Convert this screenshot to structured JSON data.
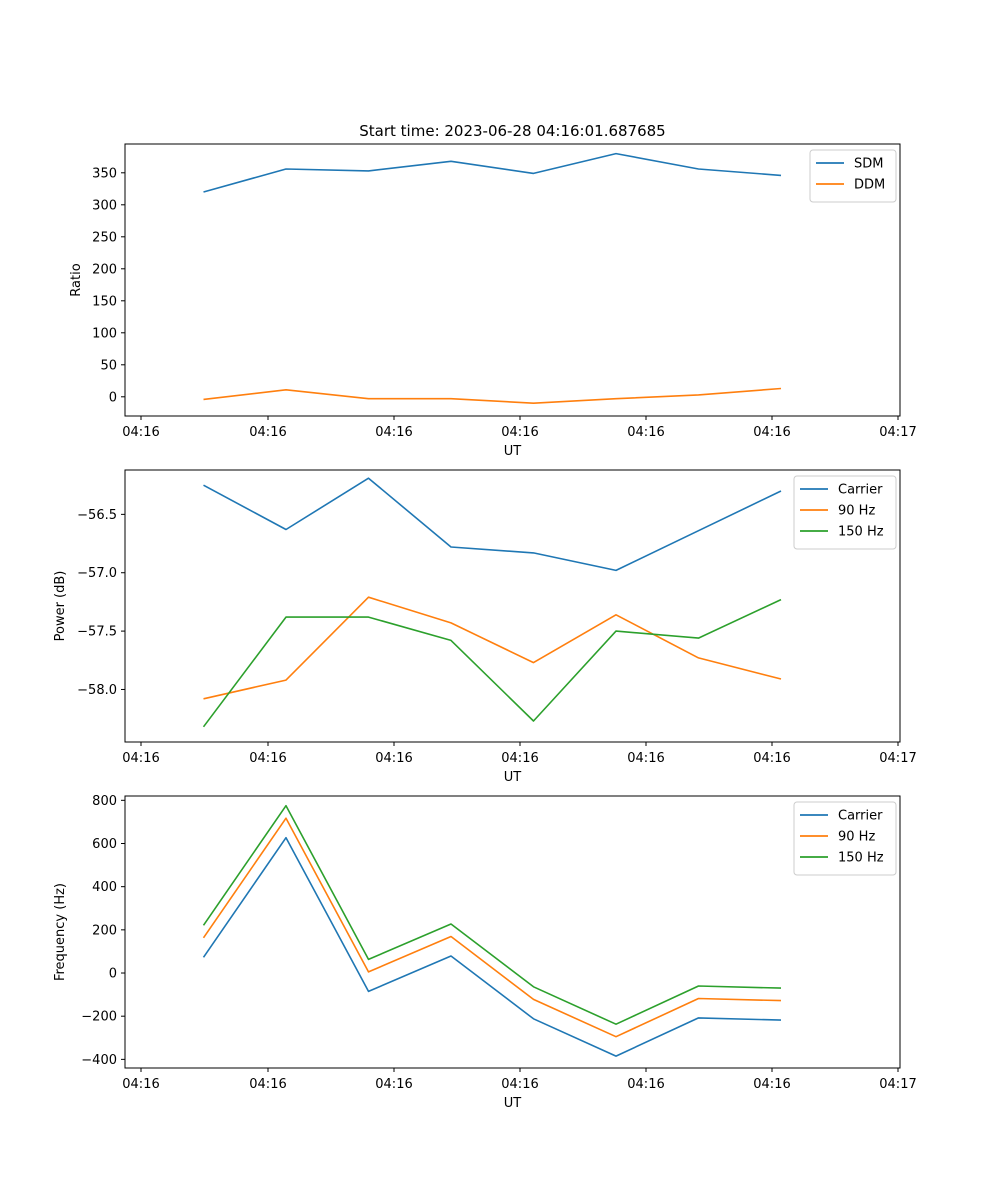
{
  "title": "Start time: 2023-06-28 04:16:01.687685",
  "chart_data": [
    {
      "type": "line",
      "title": "Start time: 2023-06-28 04:16:01.687685",
      "xlabel": "UT",
      "ylabel": "Ratio",
      "x_ticklabels": [
        "04:16",
        "04:16",
        "04:16",
        "04:16",
        "04:16",
        "04:16",
        "04:17"
      ],
      "yticks": [
        0,
        50,
        100,
        150,
        200,
        250,
        300,
        350
      ],
      "ytick_labels": [
        "0",
        "50",
        "100",
        "150",
        "200",
        "250",
        "300",
        "350"
      ],
      "ylim": [
        -30,
        395
      ],
      "legend": "upper right",
      "grid": false,
      "series": [
        {
          "name": "SDM",
          "color": "#1f77b4",
          "values": [
            320,
            356,
            353,
            368,
            349,
            380,
            356,
            346
          ]
        },
        {
          "name": "DDM",
          "color": "#ff7f0e",
          "values": [
            -4,
            11,
            -3,
            -3,
            -10,
            -3,
            3,
            13
          ]
        }
      ]
    },
    {
      "type": "line",
      "xlabel": "UT",
      "ylabel": "Power (dB)",
      "x_ticklabels": [
        "04:16",
        "04:16",
        "04:16",
        "04:16",
        "04:16",
        "04:16",
        "04:17"
      ],
      "yticks": [
        -58.0,
        -57.5,
        -57.0,
        -56.5
      ],
      "ytick_labels": [
        "−58.0",
        "−57.5",
        "−57.0",
        "−56.5"
      ],
      "ylim": [
        -58.45,
        -56.12
      ],
      "legend": "upper right",
      "grid": false,
      "series": [
        {
          "name": "Carrier",
          "color": "#1f77b4",
          "values": [
            -56.25,
            -56.63,
            -56.19,
            -56.78,
            -56.83,
            -56.98,
            -56.64,
            -56.3
          ]
        },
        {
          "name": "90 Hz",
          "color": "#ff7f0e",
          "values": [
            -58.08,
            -57.92,
            -57.21,
            -57.43,
            -57.77,
            -57.36,
            -57.73,
            -57.91
          ]
        },
        {
          "name": "150 Hz",
          "color": "#2ca02c",
          "values": [
            -58.32,
            -57.38,
            -57.38,
            -57.58,
            -58.27,
            -57.5,
            -57.56,
            -57.23
          ]
        }
      ]
    },
    {
      "type": "line",
      "xlabel": "UT",
      "ylabel": "Frequency (Hz)",
      "x_ticklabels": [
        "04:16",
        "04:16",
        "04:16",
        "04:16",
        "04:16",
        "04:16",
        "04:17"
      ],
      "yticks": [
        -400,
        -200,
        0,
        200,
        400,
        600,
        800
      ],
      "ytick_labels": [
        "−400",
        "−200",
        "0",
        "200",
        "400",
        "600",
        "800"
      ],
      "ylim": [
        -440,
        820
      ],
      "legend": "upper right",
      "grid": false,
      "series": [
        {
          "name": "Carrier",
          "color": "#1f77b4",
          "values": [
            73,
            627,
            -85,
            79,
            -212,
            -385,
            -208,
            -218
          ]
        },
        {
          "name": "90 Hz",
          "color": "#ff7f0e",
          "values": [
            163,
            717,
            5,
            169,
            -122,
            -295,
            -118,
            -128
          ]
        },
        {
          "name": "150 Hz",
          "color": "#2ca02c",
          "values": [
            221,
            775,
            63,
            227,
            -64,
            -237,
            -60,
            -70
          ]
        }
      ]
    }
  ]
}
